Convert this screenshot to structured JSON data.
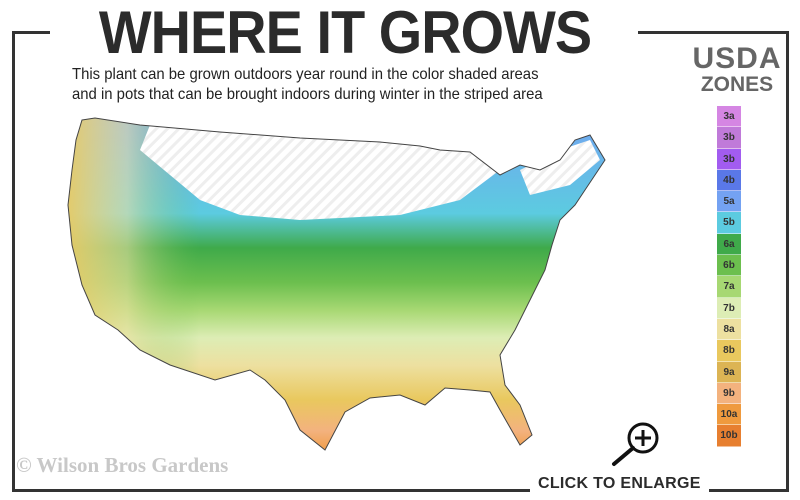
{
  "header": {
    "title": "WHERE IT GROWS",
    "subtitle_line1": "This plant can be grown outdoors year round in the color shaded areas",
    "subtitle_line2": "and in pots that can be brought indoors during winter in the striped area"
  },
  "legend": {
    "title_line1": "USDA",
    "title_line2": "ZONES",
    "zones": [
      {
        "label": "3a",
        "color": "#d586e3"
      },
      {
        "label": "3b",
        "color": "#c07ad9"
      },
      {
        "label": "3b",
        "color": "#a25cf0"
      },
      {
        "label": "4b",
        "color": "#5a78e8"
      },
      {
        "label": "5a",
        "color": "#74a2f2"
      },
      {
        "label": "5b",
        "color": "#5ccbe0"
      },
      {
        "label": "6a",
        "color": "#3faa4a"
      },
      {
        "label": "6b",
        "color": "#6cbf4e"
      },
      {
        "label": "7a",
        "color": "#a7d873"
      },
      {
        "label": "7b",
        "color": "#ddedb5"
      },
      {
        "label": "8a",
        "color": "#ede0a0"
      },
      {
        "label": "8b",
        "color": "#e9c85e"
      },
      {
        "label": "9a",
        "color": "#dcb454"
      },
      {
        "label": "9b",
        "color": "#f3b27e"
      },
      {
        "label": "10a",
        "color": "#ef9a3e"
      },
      {
        "label": "10b",
        "color": "#e77f30"
      }
    ]
  },
  "footer": {
    "copyright": "© Wilson Bros Gardens",
    "enlarge_label": "CLICK TO ENLARGE",
    "enlarge_icon": "zoom-in-icon"
  }
}
